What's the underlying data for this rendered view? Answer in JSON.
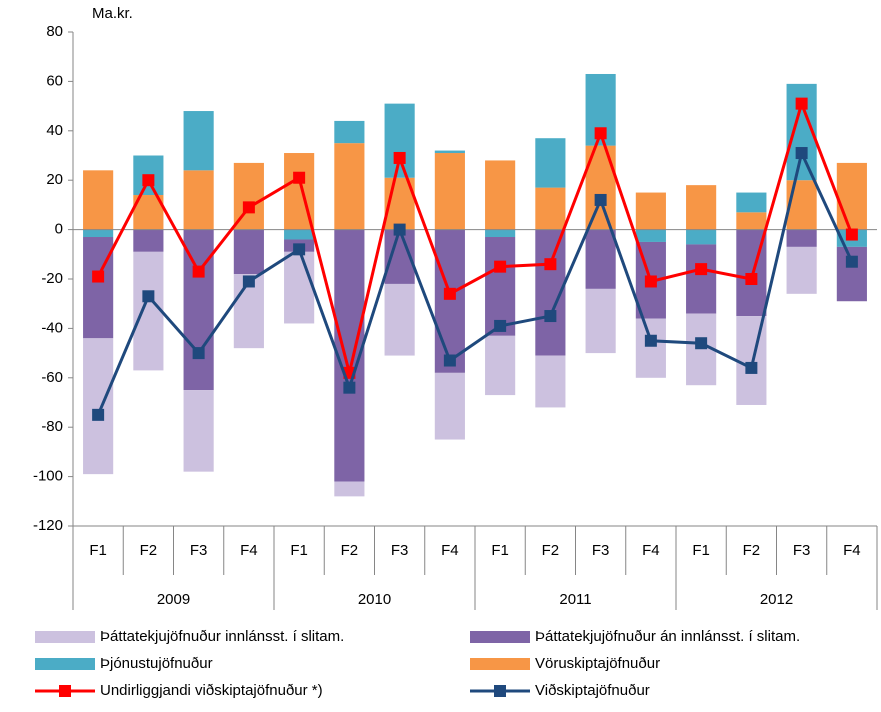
{
  "chart_data": {
    "type": "bar",
    "y_label": "Ma.kr.",
    "categories": [
      "F1",
      "F2",
      "F3",
      "F4",
      "F1",
      "F2",
      "F3",
      "F4",
      "F1",
      "F2",
      "F3",
      "F4",
      "F1",
      "F2",
      "F3",
      "F4"
    ],
    "years": [
      "2009",
      "2010",
      "2011",
      "2012"
    ],
    "ylim": [
      -120,
      80
    ],
    "yticks": [
      -120,
      -100,
      -80,
      -60,
      -40,
      -20,
      0,
      20,
      40,
      60,
      80
    ],
    "series": [
      {
        "name": "Þáttatekjujöfnuður innlánsst. í slitam.",
        "type": "bar",
        "color": "#ccc1df",
        "values": [
          -55,
          -48,
          -33,
          -30,
          -29,
          -6,
          -29,
          -27,
          -24,
          -21,
          -26,
          -24,
          -29,
          -36,
          -19,
          0
        ]
      },
      {
        "name": "Þáttatekjujöfnuður án innlánsst. í slitam.",
        "type": "bar",
        "color": "#7e64a6",
        "values": [
          -41,
          -9,
          -65,
          -18,
          -5,
          -102,
          -22,
          -58,
          -40,
          -51,
          -24,
          -31,
          -28,
          -35,
          -7,
          -22
        ]
      },
      {
        "name": "Þjónustujöfnuður",
        "type": "bar",
        "color": "#4bacc6",
        "values": [
          -3,
          16,
          24,
          0,
          -4,
          9,
          30,
          1,
          -3,
          20,
          29,
          -5,
          -6,
          8,
          39,
          -7
        ]
      },
      {
        "name": "Vöruskiptajöfnuður",
        "type": "bar",
        "color": "#f79646",
        "values": [
          24,
          14,
          24,
          27,
          31,
          35,
          21,
          31,
          28,
          17,
          34,
          15,
          18,
          7,
          20,
          27
        ]
      },
      {
        "name": "Undirliggjandi viðskiptajöfnuður *)",
        "type": "line",
        "color": "#ff0000",
        "values": [
          -19,
          20,
          -17,
          9,
          21,
          -58,
          29,
          -26,
          -15,
          -14,
          39,
          -21,
          -16,
          -20,
          51,
          -2
        ]
      },
      {
        "name": "Viðskiptajöfnuður",
        "type": "line",
        "color": "#1f497d",
        "values": [
          -75,
          -27,
          -50,
          -21,
          -8,
          -64,
          0,
          -53,
          -39,
          -35,
          12,
          -45,
          -46,
          -56,
          31,
          -13
        ]
      }
    ]
  }
}
